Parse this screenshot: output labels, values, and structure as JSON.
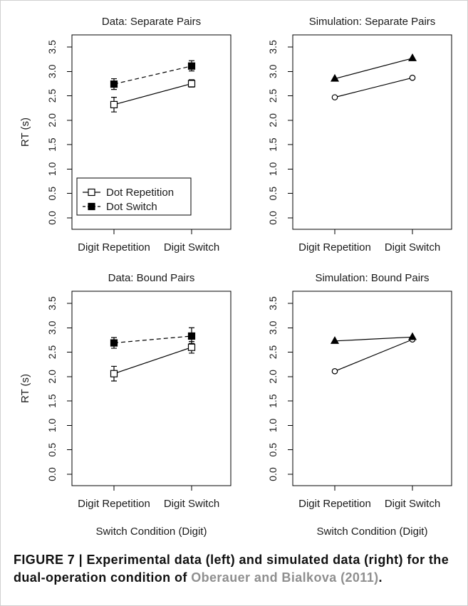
{
  "caption": {
    "text": "FIGURE 7 | Experimental data (left) and simulated data (right) for the dual-operation condition of ",
    "reference": "Oberauer and Bialkova (2011)",
    "end": ".",
    "reference_color": "#8f8f8f"
  },
  "chart_data": [
    {
      "type": "line",
      "title": "Data: Separate Pairs",
      "ylabel": "RT (s)",
      "ylim": [
        0,
        3.5
      ],
      "yticks": [
        "0.0",
        "0.5",
        "1.0",
        "1.5",
        "2.0",
        "2.5",
        "3.0",
        "3.5"
      ],
      "categories": [
        "Digit Repetition",
        "Digit Switch"
      ],
      "legend": "bottom-left",
      "series": [
        {
          "name": "Dot Repetition",
          "marker": "square",
          "filled": false,
          "dashed": false,
          "values": [
            2.32,
            2.75
          ],
          "err_low": [
            2.17,
            2.68
          ],
          "err_high": [
            2.47,
            2.83
          ]
        },
        {
          "name": "Dot Switch",
          "marker": "square",
          "filled": true,
          "dashed": true,
          "values": [
            2.74,
            3.11
          ],
          "err_low": [
            2.63,
            3.01
          ],
          "err_high": [
            2.85,
            3.22
          ]
        }
      ]
    },
    {
      "type": "line",
      "title": "Simulation: Separate Pairs",
      "ylim": [
        0,
        3.5
      ],
      "yticks": [
        "0.0",
        "0.5",
        "1.0",
        "1.5",
        "2.0",
        "2.5",
        "3.0",
        "3.5"
      ],
      "categories": [
        "Digit Repetition",
        "Digit Switch"
      ],
      "series": [
        {
          "marker": "circle",
          "filled": false,
          "dashed": false,
          "values": [
            2.47,
            2.87
          ]
        },
        {
          "marker": "triangle",
          "filled": true,
          "dashed": false,
          "values": [
            2.85,
            3.27
          ]
        }
      ]
    },
    {
      "type": "line",
      "title": "Data: Bound Pairs",
      "ylabel": "RT (s)",
      "xlabel": "Switch Condition (Digit)",
      "ylim": [
        0,
        3.5
      ],
      "yticks": [
        "0.0",
        "0.5",
        "1.0",
        "1.5",
        "2.0",
        "2.5",
        "3.0",
        "3.5"
      ],
      "categories": [
        "Digit Repetition",
        "Digit Switch"
      ],
      "series": [
        {
          "marker": "square",
          "filled": false,
          "dashed": false,
          "values": [
            2.06,
            2.6
          ],
          "err_low": [
            1.91,
            2.48
          ],
          "err_high": [
            2.21,
            2.72
          ]
        },
        {
          "marker": "square",
          "filled": true,
          "dashed": true,
          "values": [
            2.69,
            2.83
          ],
          "err_low": [
            2.58,
            2.68
          ],
          "err_high": [
            2.8,
            3.0
          ]
        }
      ]
    },
    {
      "type": "line",
      "title": "Simulation: Bound Pairs",
      "xlabel": "Switch Condition (Digit)",
      "ylim": [
        0,
        3.5
      ],
      "yticks": [
        "0.0",
        "0.5",
        "1.0",
        "1.5",
        "2.0",
        "2.5",
        "3.0",
        "3.5"
      ],
      "categories": [
        "Digit Repetition",
        "Digit Switch"
      ],
      "series": [
        {
          "marker": "circle",
          "filled": false,
          "dashed": false,
          "values": [
            2.11,
            2.76
          ]
        },
        {
          "marker": "triangle",
          "filled": true,
          "dashed": false,
          "values": [
            2.73,
            2.81
          ]
        }
      ]
    }
  ]
}
